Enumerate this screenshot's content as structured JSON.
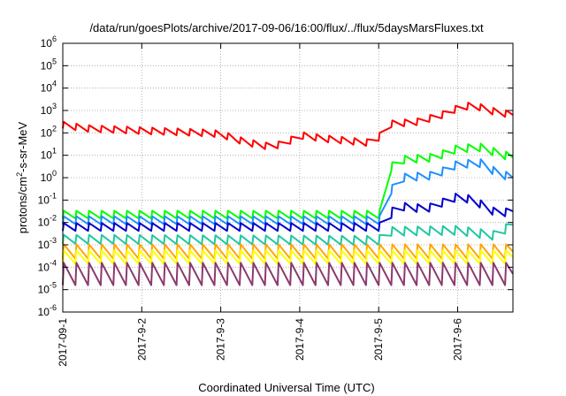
{
  "chart_data": {
    "type": "line",
    "title": "/data/run/goesPlots/archive/2017-09-06/16:00/flux/../flux/5daysMarsFluxes.txt",
    "xlabel": "Coordinated Universal Time (UTC)",
    "ylabel_base": "protons/cm",
    "ylabel_sup": "2",
    "ylabel_rest": "-s-sr-MeV",
    "yscale": "log",
    "ylim_exp": [
      -6,
      6
    ],
    "ytick_exps": [
      -6,
      -5,
      -4,
      -3,
      -2,
      -1,
      0,
      1,
      2,
      3,
      4,
      5,
      6
    ],
    "xlim_days": [
      0,
      5.7
    ],
    "xticks": [
      {
        "day": 0,
        "label": "2017-09-1"
      },
      {
        "day": 1,
        "label": "2017-9-2"
      },
      {
        "day": 2,
        "label": "2017-9-3"
      },
      {
        "day": 3,
        "label": "2017-9-4"
      },
      {
        "day": 4,
        "label": "2017-9-5"
      },
      {
        "day": 5,
        "label": "2017-9-6"
      }
    ],
    "grid": true,
    "series": [
      {
        "color": "#ff0000",
        "period": 0.16,
        "amplitude_dex": 0.3,
        "baseline_log": [
          [
            0,
            2.35
          ],
          [
            0.3,
            2.2
          ],
          [
            1.0,
            2.1
          ],
          [
            1.8,
            2.0
          ],
          [
            2.0,
            1.95
          ],
          [
            2.3,
            1.6
          ],
          [
            2.6,
            1.4
          ],
          [
            2.8,
            1.5
          ],
          [
            3.0,
            1.9
          ],
          [
            3.3,
            1.75
          ],
          [
            3.6,
            1.65
          ],
          [
            3.9,
            1.55
          ],
          [
            4.0,
            1.8
          ],
          [
            4.15,
            2.4
          ],
          [
            4.5,
            2.5
          ],
          [
            4.8,
            2.8
          ],
          [
            5.0,
            3.1
          ],
          [
            5.2,
            3.25
          ],
          [
            5.4,
            3.0
          ],
          [
            5.7,
            2.8
          ]
        ]
      },
      {
        "color": "#00ff00",
        "period": 0.16,
        "amplitude_dex": 0.35,
        "baseline_log": [
          [
            0,
            -1.65
          ],
          [
            4.0,
            -1.65
          ],
          [
            4.1,
            -1.5
          ],
          [
            4.12,
            0.4
          ],
          [
            4.3,
            0.8
          ],
          [
            4.7,
            0.9
          ],
          [
            5.0,
            1.3
          ],
          [
            5.3,
            1.35
          ],
          [
            5.5,
            1.1
          ],
          [
            5.7,
            0.9
          ]
        ]
      },
      {
        "color": "#1e90ff",
        "period": 0.16,
        "amplitude_dex": 0.35,
        "baseline_log": [
          [
            0,
            -1.9
          ],
          [
            4.0,
            -1.9
          ],
          [
            4.08,
            -1.7
          ],
          [
            4.12,
            -0.7
          ],
          [
            4.3,
            0.0
          ],
          [
            4.7,
            0.1
          ],
          [
            5.0,
            0.6
          ],
          [
            5.3,
            0.65
          ],
          [
            5.5,
            0.2
          ],
          [
            5.7,
            0.0
          ]
        ]
      },
      {
        "color": "#0000cd",
        "period": 0.16,
        "amplitude_dex": 0.35,
        "baseline_log": [
          [
            0,
            -2.2
          ],
          [
            4.0,
            -2.2
          ],
          [
            4.12,
            -2.0
          ],
          [
            4.2,
            -1.25
          ],
          [
            4.6,
            -1.4
          ],
          [
            5.0,
            -0.85
          ],
          [
            5.2,
            -1.0
          ],
          [
            5.5,
            -1.6
          ],
          [
            5.7,
            -1.5
          ]
        ]
      },
      {
        "color": "#20c8a0",
        "period": 0.16,
        "amplitude_dex": 0.4,
        "baseline_log": [
          [
            0,
            -2.75
          ],
          [
            4.0,
            -2.8
          ],
          [
            4.12,
            -2.4
          ],
          [
            5.0,
            -2.35
          ],
          [
            5.5,
            -2.6
          ],
          [
            5.6,
            -2.3
          ],
          [
            5.7,
            -2.1
          ]
        ]
      },
      {
        "color": "#ffa500",
        "period": 0.16,
        "amplitude_dex": 0.65,
        "baseline_log": [
          [
            0,
            -3.3
          ],
          [
            5.7,
            -3.3
          ]
        ]
      },
      {
        "color": "#ffff00",
        "period": 0.16,
        "amplitude_dex": 0.6,
        "baseline_log": [
          [
            0,
            -3.55
          ],
          [
            5.7,
            -3.55
          ]
        ]
      },
      {
        "color": "#8b3a6e",
        "period": 0.16,
        "amplitude_dex": 1.0,
        "baseline_log": [
          [
            0,
            -4.3
          ],
          [
            5.7,
            -4.3
          ]
        ]
      }
    ]
  }
}
